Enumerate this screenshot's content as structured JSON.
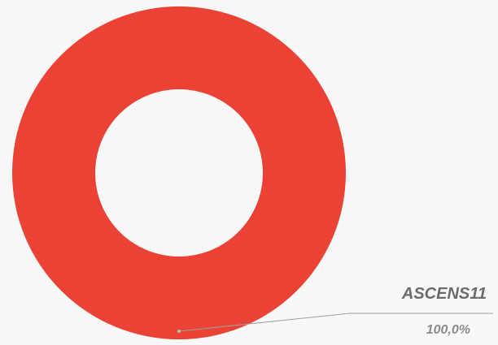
{
  "chart_data": {
    "type": "pie",
    "donut": true,
    "slices": [
      {
        "label": "ASCENS11",
        "value": 100.0,
        "display": "100,0%",
        "color": "#ea4335"
      }
    ],
    "legend": "none",
    "label_placement": "outside-bottom-right"
  },
  "colors": {
    "background": "#f8f8f8",
    "leader_line": "#9e9e9e"
  }
}
